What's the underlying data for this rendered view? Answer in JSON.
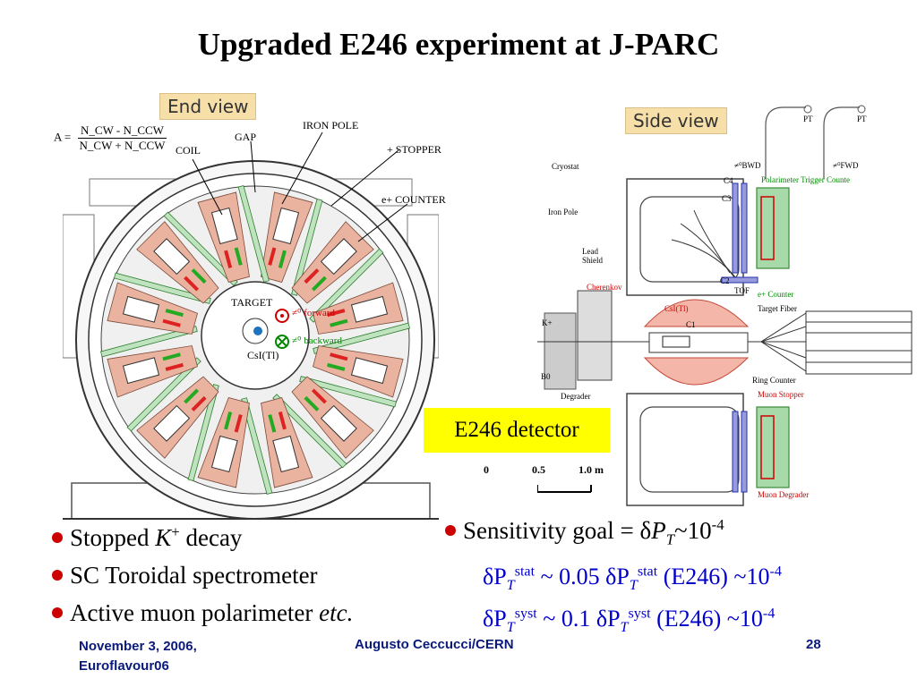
{
  "slide": {
    "title": "Upgraded E246 experiment at J-PARC",
    "end_view_label": "End view",
    "side_view_label": "Side view",
    "detector_box": "E246 detector"
  },
  "end_view": {
    "formula_lhs": "A =",
    "formula_num": "N_CW - N_CCW",
    "formula_den": "N_CW + N_CCW",
    "labels": {
      "coil": "COIL",
      "gap": "GAP",
      "iron_pole": "IRON POLE",
      "stopper": "+ STOPPER",
      "counter": "e+ COUNTER",
      "target": "TARGET",
      "csi": "CsI(Tl)",
      "forward": "≠⁰ forward",
      "backward": "≠⁰ backward"
    }
  },
  "side_view": {
    "labels": {
      "cryostat": "Cryostat",
      "iron_pole": "Iron Pole",
      "lead_shield": "Lead Shield",
      "cherenkov": "Cherenkov",
      "kplus": "K+",
      "b0": "B0",
      "degrader": "Degrader",
      "c4": "C4",
      "c3": "C3",
      "c2": "C2",
      "c1": "C1",
      "csi": "CsI(Tl)",
      "tof": "TOF",
      "pol_trigger": "Polarimeter Trigger Counte",
      "e_counter": "e+ Counter",
      "target_fiber": "Target Fiber",
      "ring_counter": "Ring Counter",
      "muon_stopper": "Muon Stopper",
      "muon_degrader": "Muon Degrader",
      "bwd": "≠⁰BWD",
      "fwd": "≠⁰FWD",
      "pt": "PT",
      "scale_0": "0",
      "scale_05": "0.5",
      "scale_1": "1.0 m"
    }
  },
  "left_bullets": [
    {
      "pre": "Stopped ",
      "italic": "K",
      "sup": "+",
      "post": " decay"
    },
    {
      "text": "SC Toroidal spectrometer"
    },
    {
      "pre": "Active muon polarimeter ",
      "italic": "etc."
    }
  ],
  "right_bullets": {
    "goal_pre": "Sensitivity goal = δ",
    "goal_P": "P",
    "goal_T": "T",
    "goal_post": "~10",
    "goal_exp": "-4",
    "stat": {
      "a": "δP",
      "sub": "T",
      "sup": "stat",
      "mid": " ~ 0.05 δP",
      "sub2": "T",
      "sup2": "stat",
      "paren": " (E246) ~10",
      "exp": "-4"
    },
    "syst": {
      "a": "δP",
      "sub": "T",
      "sup": "syst",
      "mid": " ~ 0.1 δP",
      "sub2": "T",
      "sup2": "syst",
      "paren": " (E246) ~10",
      "exp": "-4"
    }
  },
  "footer": {
    "date": "November 3,  2006,",
    "event": "Euroflavour06",
    "author": "Augusto Ceccucci/CERN",
    "page": "28"
  },
  "colors": {
    "bullet": "#cc0000",
    "footer": "#0a1a7a",
    "highlight": "#ffff00",
    "blue_text": "#0000cc"
  }
}
